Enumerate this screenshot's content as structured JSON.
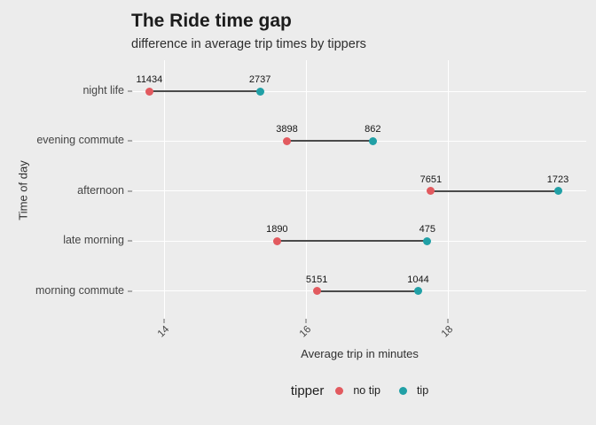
{
  "chart_data": {
    "type": "dumbbell",
    "title": "The Ride time gap",
    "subtitle": "difference in average trip times by tippers",
    "xlabel": "Average trip in minutes",
    "ylabel": "Time of day",
    "categories": [
      "night life",
      "evening commute",
      "afternoon",
      "late morning",
      "morning commute"
    ],
    "series": [
      {
        "name": "no tip",
        "color": "#e25a5f",
        "values": [
          13.79,
          15.73,
          17.76,
          15.59,
          16.15
        ],
        "counts": [
          "11434",
          "3898",
          "7651",
          "1890",
          "5151"
        ]
      },
      {
        "name": "tip",
        "color": "#21a0a6",
        "values": [
          15.35,
          16.94,
          19.55,
          17.71,
          17.58
        ],
        "counts": [
          "2737",
          "862",
          "1723",
          "475",
          "1044"
        ]
      }
    ],
    "x_ticks": [
      {
        "label": "14",
        "value": 14
      },
      {
        "label": "16",
        "value": 16
      },
      {
        "label": "18",
        "value": 18
      }
    ],
    "xlim": [
      13.56,
      19.95
    ],
    "legend_title": "tipper",
    "legend_position": "bottom",
    "grid": true,
    "colors": {
      "background": "#ececec",
      "gridline": "#ffffff",
      "connector": "#4a4a4a",
      "no_tip": "#e25a5f",
      "tip": "#21a0a6"
    }
  }
}
